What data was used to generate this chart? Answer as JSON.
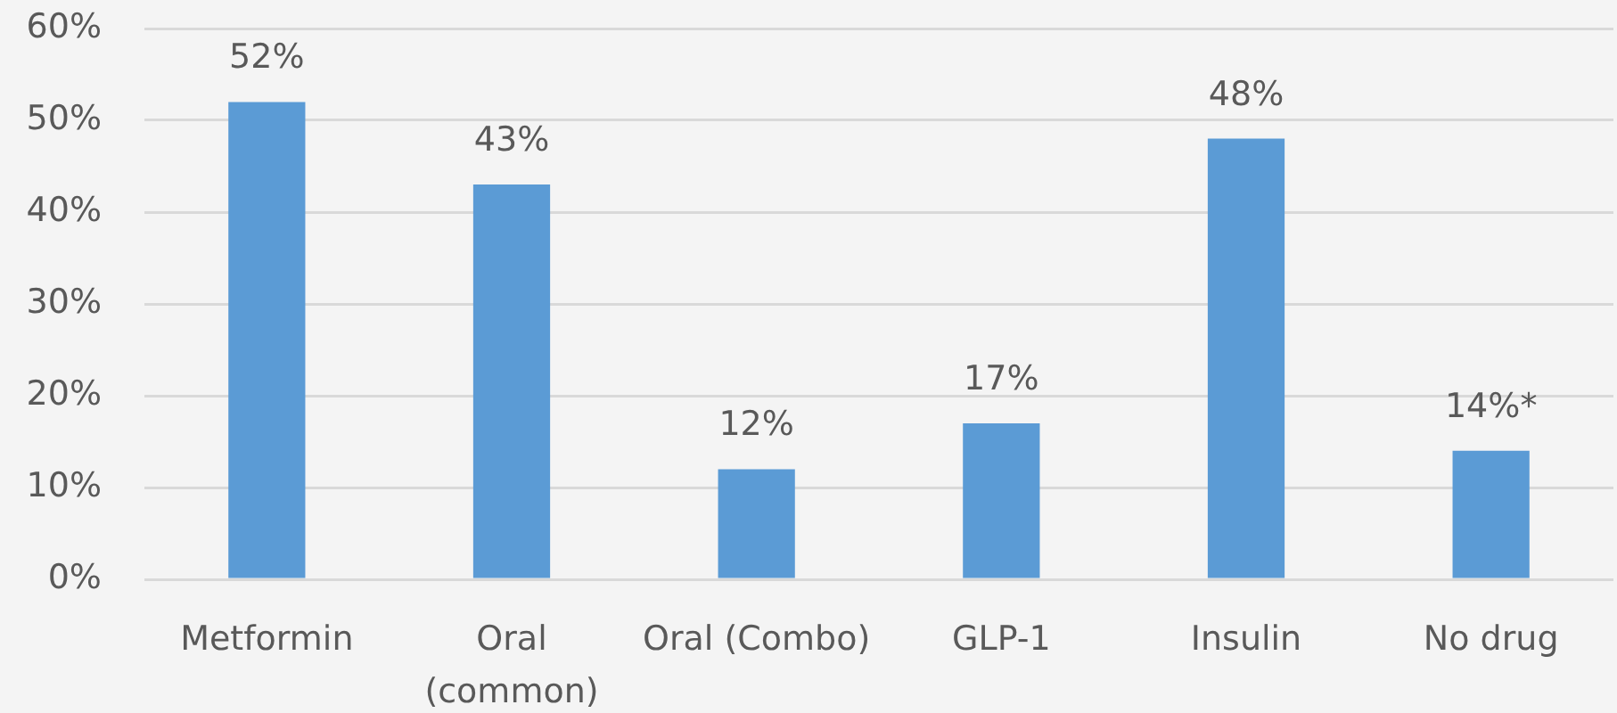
{
  "chart_data": {
    "type": "bar",
    "categories": [
      "Metformin",
      "Oral (common)",
      "Oral (Combo)",
      "GLP-1",
      "Insulin",
      "No drug"
    ],
    "values": [
      52,
      43,
      12,
      17,
      48,
      14
    ],
    "value_labels": [
      "52%",
      "43%",
      "12%",
      "17%",
      "48%",
      "14%*"
    ],
    "color": "#5b9bd5",
    "ylim": [
      0,
      60
    ],
    "yticks": [
      {
        "value": 0,
        "label": "0%"
      },
      {
        "value": 10,
        "label": "10%"
      },
      {
        "value": 20,
        "label": "20%"
      },
      {
        "value": 30,
        "label": "30%"
      },
      {
        "value": 40,
        "label": "40%"
      },
      {
        "value": 50,
        "label": "50%"
      },
      {
        "value": 60,
        "label": "60%"
      }
    ],
    "grid": "y",
    "legend": false
  }
}
